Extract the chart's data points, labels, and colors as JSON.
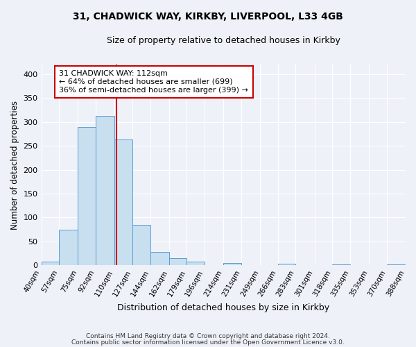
{
  "title_line1": "31, CHADWICK WAY, KIRKBY, LIVERPOOL, L33 4GB",
  "title_line2": "Size of property relative to detached houses in Kirkby",
  "xlabel": "Distribution of detached houses by size in Kirkby",
  "ylabel": "Number of detached properties",
  "bin_edges": [
    40,
    57,
    75,
    92,
    110,
    127,
    144,
    162,
    179,
    196,
    214,
    231,
    249,
    266,
    283,
    301,
    318,
    335,
    353,
    370,
    388
  ],
  "bin_counts": [
    8,
    75,
    290,
    313,
    263,
    85,
    28,
    15,
    8,
    0,
    5,
    0,
    0,
    4,
    0,
    0,
    2,
    0,
    0,
    2
  ],
  "bar_color": "#c8dff0",
  "bar_edge_color": "#5b9bd5",
  "property_size": 112,
  "vline_color": "#cc0000",
  "annotation_text": "31 CHADWICK WAY: 112sqm\n← 64% of detached houses are smaller (699)\n36% of semi-detached houses are larger (399) →",
  "annotation_box_edgecolor": "#cc0000",
  "annotation_box_facecolor": "white",
  "ylim": [
    0,
    420
  ],
  "yticks": [
    0,
    50,
    100,
    150,
    200,
    250,
    300,
    350,
    400
  ],
  "tick_labels": [
    "40sqm",
    "57sqm",
    "75sqm",
    "92sqm",
    "110sqm",
    "127sqm",
    "144sqm",
    "162sqm",
    "179sqm",
    "196sqm",
    "214sqm",
    "231sqm",
    "249sqm",
    "266sqm",
    "283sqm",
    "301sqm",
    "318sqm",
    "335sqm",
    "353sqm",
    "370sqm",
    "388sqm"
  ],
  "footer_line1": "Contains HM Land Registry data © Crown copyright and database right 2024.",
  "footer_line2": "Contains public sector information licensed under the Open Government Licence v3.0.",
  "bg_color": "#eef2f8"
}
